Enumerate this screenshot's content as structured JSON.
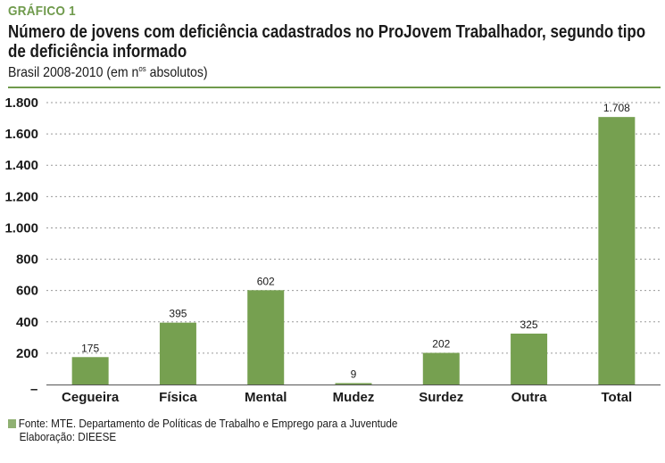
{
  "header": {
    "label": "GRÁFICO 1",
    "title": "Número de jovens com deficiência cadastrados no ProJovem Trabalhador, segundo tipo de deficiência informado",
    "subtitle_before": "Brasil 2008-2010 (em n",
    "subtitle_sup": "os",
    "subtitle_after": " absolutos)"
  },
  "chart_data": {
    "type": "bar",
    "categories": [
      "Cegueira",
      "Física",
      "Mental",
      "Mudez",
      "Surdez",
      "Outra",
      "Total"
    ],
    "values": [
      175,
      395,
      602,
      9,
      202,
      325,
      1708
    ],
    "value_labels": [
      "175",
      "395",
      "602",
      "9",
      "202",
      "325",
      "1.708"
    ],
    "ylim": [
      0,
      1800
    ],
    "ytick_values": [
      200,
      400,
      600,
      800,
      1000,
      1200,
      1400,
      1600,
      1800
    ],
    "ytick_labels": [
      "200",
      "400",
      "600",
      "800",
      "1.000",
      "1.200",
      "1.400",
      "1.600",
      "1.800"
    ],
    "zero_label": "–",
    "grid": true,
    "bar_color": "#76a050",
    "xlabel": "",
    "ylabel": ""
  },
  "footer": {
    "source": "Fonte: MTE. Departamento de Políticas de Trabalho e Emprego para a Juventude",
    "credit": "Elaboração: DIEESE",
    "swatch_color": "#8fb072"
  }
}
